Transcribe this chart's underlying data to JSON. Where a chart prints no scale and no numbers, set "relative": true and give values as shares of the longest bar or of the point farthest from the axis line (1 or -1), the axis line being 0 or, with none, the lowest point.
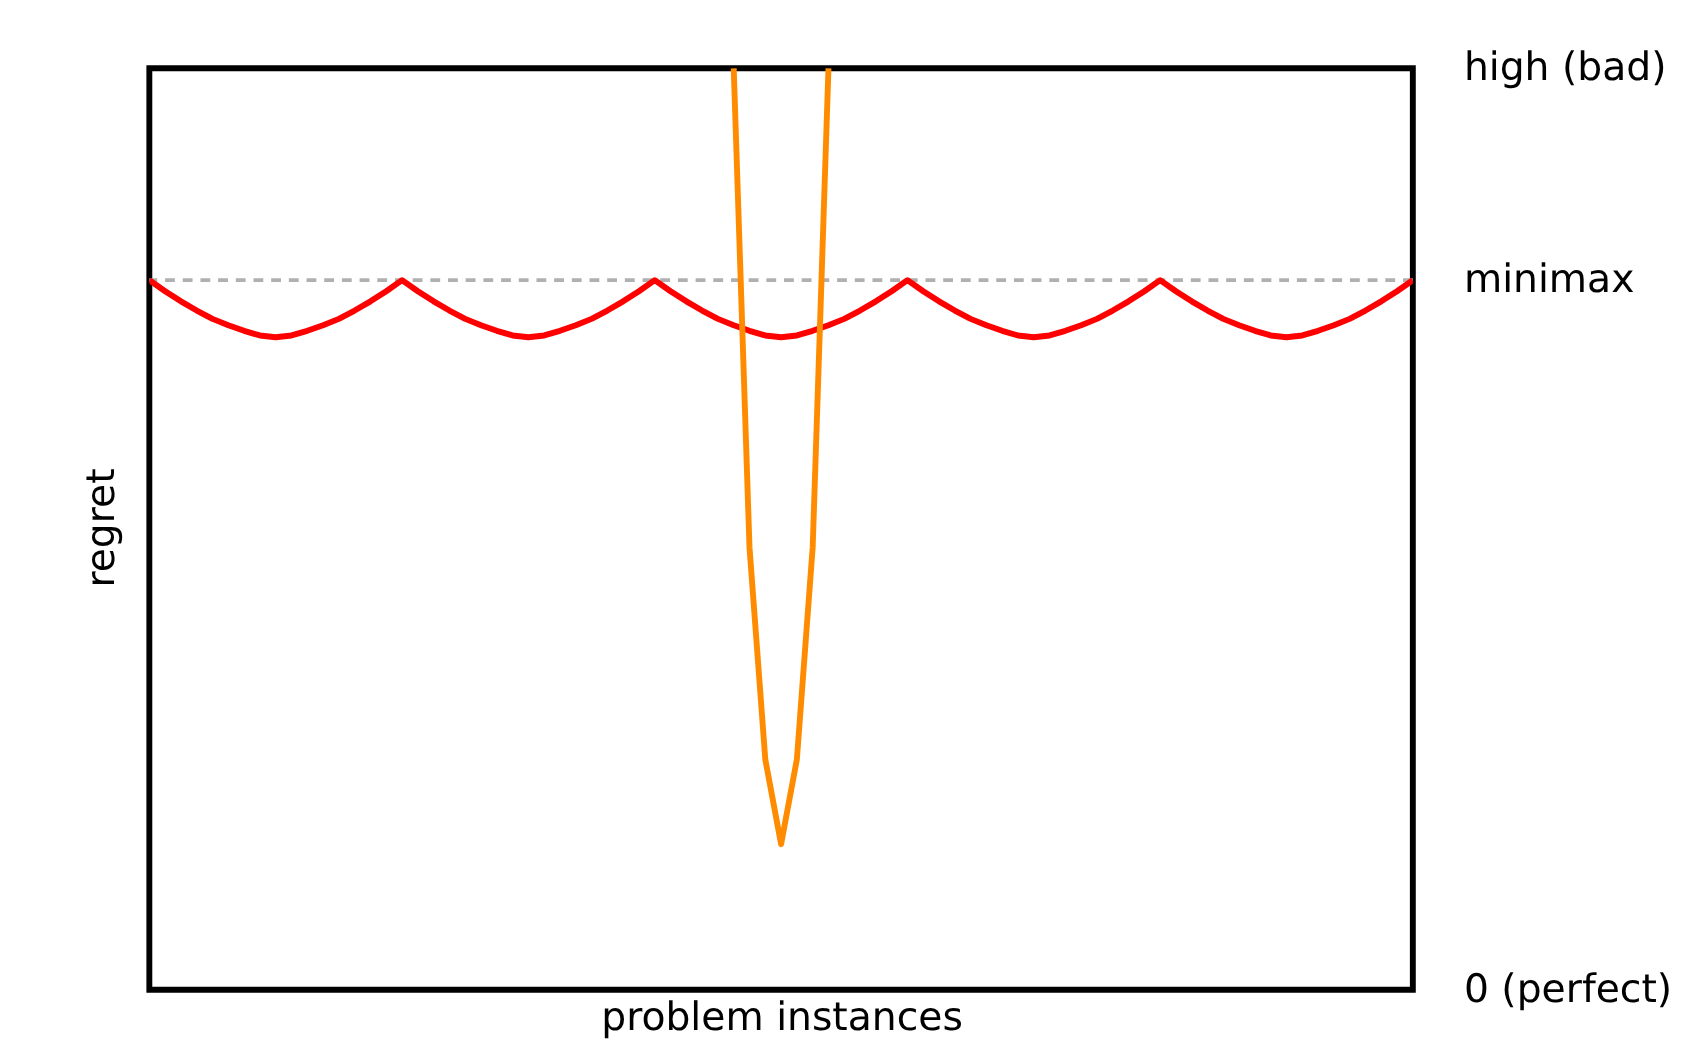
{
  "chart_data": {
    "type": "line",
    "xlabel": "problem instances",
    "ylabel": "regret",
    "categories": [
      null,
      null,
      null,
      null,
      null,
      null,
      null,
      null,
      null,
      null,
      null,
      null,
      null,
      null,
      null,
      null,
      null,
      null,
      null,
      null,
      null,
      null,
      null,
      null,
      null,
      null,
      null,
      null,
      null,
      null,
      null,
      null,
      null,
      null,
      null,
      null,
      null,
      null,
      null,
      null,
      null,
      null,
      null,
      null,
      null,
      null,
      null,
      null,
      null,
      null,
      null,
      null,
      null,
      null,
      null,
      null,
      null,
      null,
      null,
      null,
      null,
      null,
      null,
      null,
      null,
      null,
      null,
      null,
      null,
      null,
      null,
      null,
      null,
      null,
      null,
      null,
      null,
      null,
      null,
      null,
      null
    ],
    "series": [
      {
        "color": "#ff0000",
        "values": [
          0.77,
          0.758,
          0.747,
          0.737,
          0.728,
          0.721,
          0.715,
          0.71,
          0.708,
          0.71,
          0.715,
          0.721,
          0.728,
          0.737,
          0.747,
          0.758,
          0.77,
          0.758,
          0.747,
          0.737,
          0.728,
          0.721,
          0.715,
          0.71,
          0.708,
          0.71,
          0.715,
          0.721,
          0.728,
          0.737,
          0.747,
          0.758,
          0.77,
          0.758,
          0.747,
          0.737,
          0.728,
          0.721,
          0.715,
          0.71,
          0.708,
          0.71,
          0.715,
          0.721,
          0.728,
          0.737,
          0.747,
          0.758,
          0.77,
          0.758,
          0.747,
          0.737,
          0.728,
          0.721,
          0.715,
          0.71,
          0.708,
          0.71,
          0.715,
          0.721,
          0.728,
          0.737,
          0.747,
          0.758,
          0.77,
          0.758,
          0.747,
          0.737,
          0.728,
          0.721,
          0.715,
          0.71,
          0.708,
          0.71,
          0.715,
          0.721,
          0.728,
          0.737,
          0.747,
          0.758,
          0.77
        ]
      },
      {
        "color": "#ff8c00",
        "values": [
          null,
          null,
          null,
          null,
          null,
          null,
          null,
          null,
          null,
          null,
          null,
          null,
          null,
          null,
          null,
          null,
          null,
          null,
          null,
          null,
          null,
          null,
          null,
          null,
          null,
          null,
          null,
          null,
          null,
          null,
          null,
          null,
          null,
          null,
          null,
          null,
          null,
          1.0,
          0.48,
          0.25,
          0.158,
          0.25,
          0.48,
          1.0,
          null,
          null,
          null,
          null,
          null,
          null,
          null,
          null,
          null,
          null,
          null,
          null,
          null,
          null,
          null,
          null,
          null,
          null,
          null,
          null,
          null,
          null,
          null,
          null,
          null,
          null,
          null,
          null,
          null,
          null,
          null,
          null,
          null,
          null,
          null,
          null,
          null
        ]
      }
    ],
    "relative": true,
    "annotations": [
      "0 (perfect)",
      "high (bad)"
    ],
    "ref_lines": [
      {
        "axis": "y",
        "value": 0.77,
        "label": "minimax",
        "color": "#b0b0b0",
        "line_style": "dashed"
      }
    ],
    "grid": false,
    "legend": false,
    "line_style": "solid",
    "marker": "none"
  }
}
